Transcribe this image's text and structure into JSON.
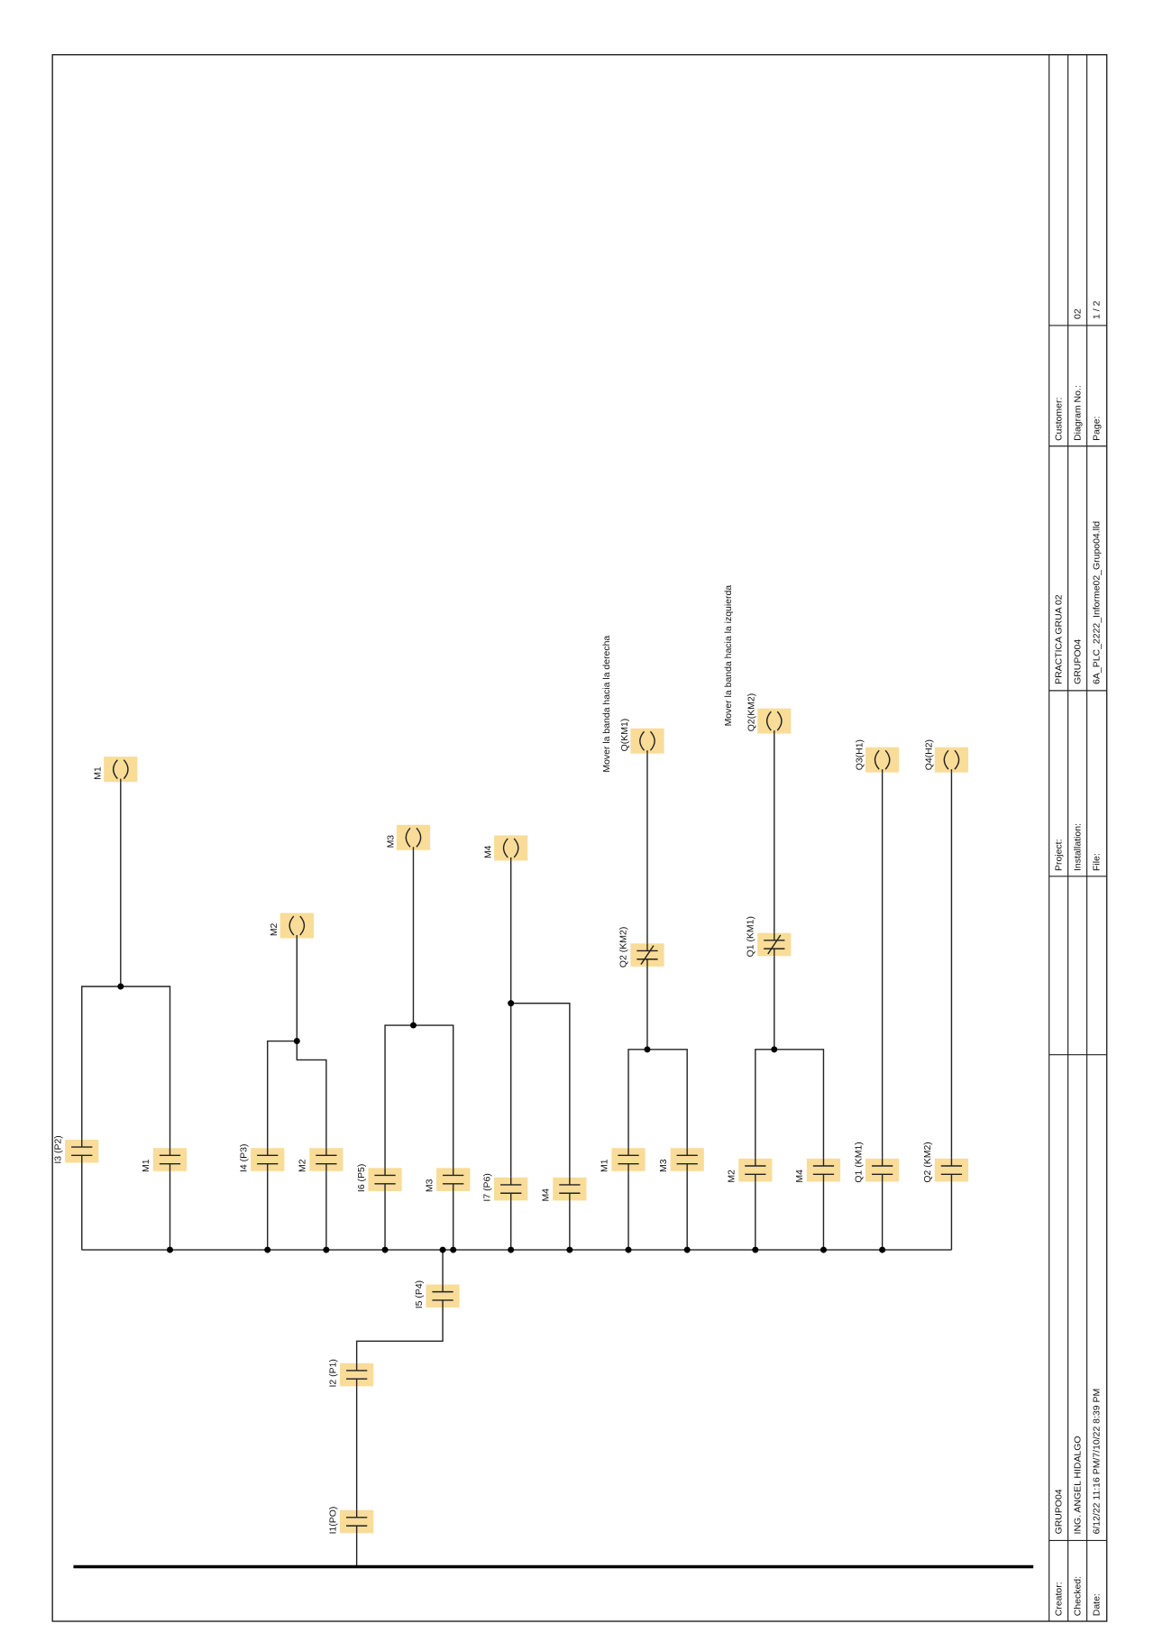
{
  "diagram": {
    "contacts": [
      "I1(PO)",
      "I2 (P1)",
      "I5 (P4)",
      "I3 (P2)",
      "M1",
      "I4 (P3)",
      "M2",
      "I6 (P5)",
      "M3",
      "I7 (P6)",
      "M4",
      "M1",
      "M3",
      "M2",
      "M4",
      "Q1 (KM1)",
      "Q2 (KM2)",
      "Q2 (KM2)",
      "Q1 (KM1)"
    ],
    "coils": [
      "M1",
      "M2",
      "M3",
      "M4",
      "Q(KM1)",
      "Q2(KM2)",
      "Q3(H1)",
      "Q4(H2)"
    ],
    "annotations": [
      "Mover la banda hacia la derecha",
      "Mover la banda hacia la izquierda"
    ]
  },
  "title_block": {
    "creator_label": "Creator:",
    "creator": "GRUPO04",
    "checked_label": "Checked:",
    "checked": "ING. ANGEL HIDALGO",
    "date_label": "Date:",
    "date": "6/12/22 11:16 PM/7/10/22 8:39 PM",
    "project_label": "Project:",
    "project": "PRACTICA GRUA 02",
    "installation_label": "Installation:",
    "installation": "GRUPO04",
    "file_label": "File:",
    "file": "6A_PLC_2222_Informe02_Grupo04.lld",
    "customer_label": "Customer:",
    "diagram_no_label": "Diagram No.:",
    "diagram_no": "02",
    "page_label": "Page:",
    "page": "1 / 2"
  }
}
